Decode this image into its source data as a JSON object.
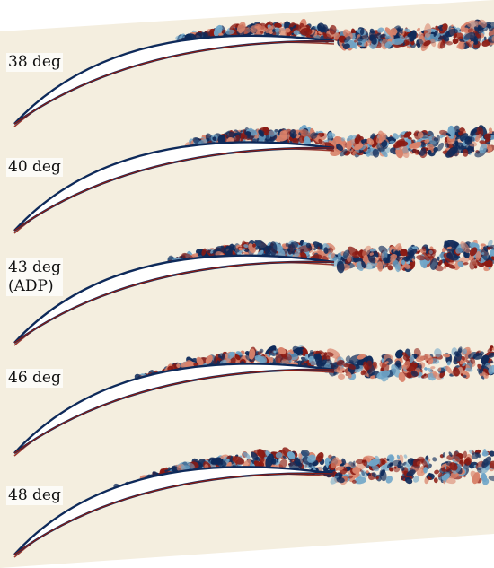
{
  "colors": {
    "background_field": "#f4eedf",
    "blade": "#ffffff",
    "vortex_positive": "#8b1a12",
    "vortex_negative": "#0e2a5a",
    "vortex_mid_blue": "#6fa5c8",
    "vortex_mid_red": "#d9826a"
  },
  "cases": [
    {
      "label": "38 deg",
      "sub": ""
    },
    {
      "label": "40 deg",
      "sub": ""
    },
    {
      "label": "43 deg",
      "sub": "(ADP)"
    },
    {
      "label": "46 deg",
      "sub": ""
    },
    {
      "label": "48 deg",
      "sub": ""
    }
  ]
}
